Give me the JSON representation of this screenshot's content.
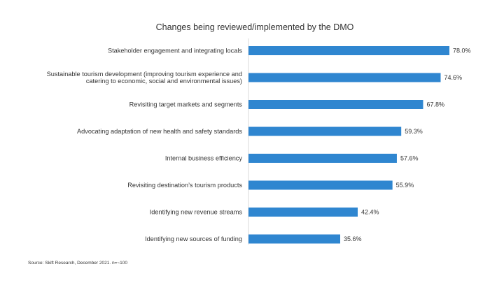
{
  "chart_data": {
    "type": "bar",
    "orientation": "horizontal",
    "title": "Changes being reviewed/implemented by the DMO",
    "categories": [
      [
        "Stakeholder engagement and integrating locals"
      ],
      [
        "Sustainable tourism development (improving tourism experience and",
        "catering to economic, social and environmental issues)"
      ],
      [
        "Revisiting target markets and segments"
      ],
      [
        "Advocating adaptation of new health and safety standards"
      ],
      [
        "Internal business efficiency"
      ],
      [
        "Revisiting destination’s tourism products"
      ],
      [
        "Identifying new revenue streams"
      ],
      [
        "Identifying new sources of funding"
      ]
    ],
    "values": [
      78.0,
      74.6,
      67.8,
      59.3,
      57.6,
      55.9,
      42.4,
      35.6
    ],
    "value_labels": [
      "78.0%",
      "74.6%",
      "67.8%",
      "59.3%",
      "57.6%",
      "55.9%",
      "42.4%",
      "35.6%"
    ],
    "xlim": [
      0,
      100
    ],
    "grid": false,
    "legend": "none",
    "bar_color": "#2f86d0",
    "source": "Source: Skift Research, December 2021. n=~100"
  }
}
